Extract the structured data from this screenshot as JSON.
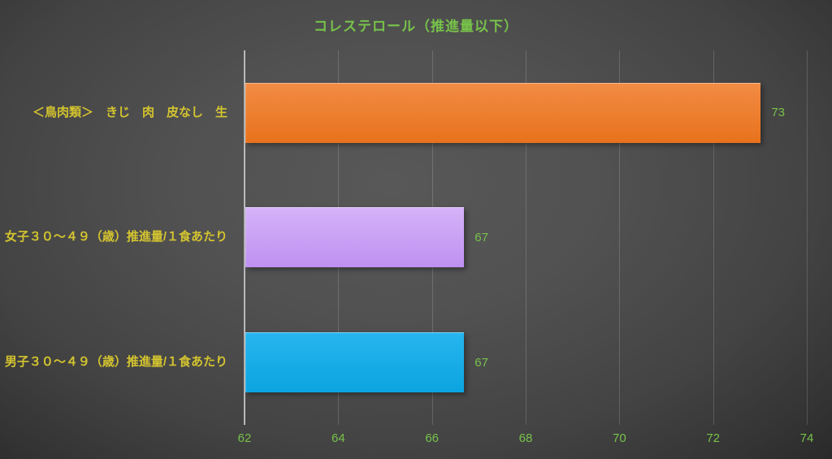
{
  "chart_data": {
    "type": "bar",
    "orientation": "horizontal",
    "title": "コレステロール（推進量以下）",
    "categories": [
      "＜鳥肉類＞　きじ　肉　皮なし　生",
      "女子３０～４９（歳）推進量/１食あたり",
      "男子３０～４９（歳）推進量/１食あたり"
    ],
    "values": [
      73,
      67,
      67
    ],
    "value_labels": [
      "73",
      "67",
      "67"
    ],
    "bar_plot_values": [
      73,
      66.67,
      66.67
    ],
    "xlim": [
      62,
      74
    ],
    "x_ticks": [
      62,
      64,
      66,
      68,
      70,
      72,
      74
    ],
    "grid": true,
    "legend": false,
    "bar_colors": [
      {
        "name": "orange",
        "top": "#F28C45",
        "bottom": "#E8721C"
      },
      {
        "name": "lavender",
        "top": "#D6B3F8",
        "bottom": "#BE90F1"
      },
      {
        "name": "cyan",
        "top": "#27B5EE",
        "bottom": "#0BA4E0"
      }
    ],
    "colors": {
      "title": "#77C24A",
      "tick": "#77C24A",
      "value_label": "#77C24A",
      "category_label": "#D4C42F",
      "axis_line": "#B9B9B9",
      "gridline": "rgba(255,255,255,0.16)"
    }
  }
}
